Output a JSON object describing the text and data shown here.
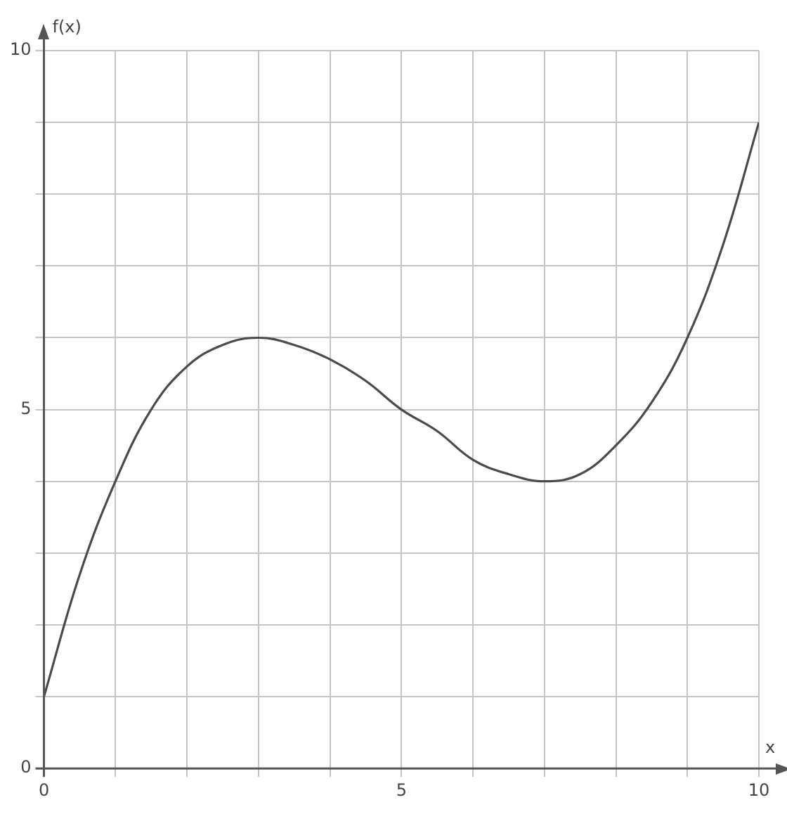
{
  "chart_data": {
    "type": "line",
    "xlabel": "x",
    "ylabel": "f(x)",
    "x": [
      0,
      0.5,
      1,
      1.5,
      2,
      2.5,
      3,
      3.5,
      4,
      4.5,
      5,
      5.5,
      6,
      6.5,
      7,
      7.5,
      8,
      8.5,
      9,
      9.5,
      10
    ],
    "series": [
      {
        "color": "#4a4a4a",
        "values": [
          1,
          2.7,
          4,
          5,
          5.6,
          5.9,
          6,
          5.9,
          5.7,
          5.4,
          5,
          4.7,
          4.3,
          4.1,
          4,
          4.1,
          4.5,
          5.1,
          6,
          7.3,
          9
        ]
      }
    ],
    "xlim": [
      0,
      10
    ],
    "ylim": [
      0,
      10
    ],
    "xticks": [
      0,
      {
        "value": 1,
        "label": null
      },
      {
        "value": 2,
        "label": null
      },
      {
        "value": 3,
        "label": null
      },
      {
        "value": 4,
        "label": null
      },
      5,
      {
        "value": 6,
        "label": null
      },
      {
        "value": 7,
        "label": null
      },
      {
        "value": 8,
        "label": null
      },
      {
        "value": 9,
        "label": null
      },
      10
    ],
    "yticks": [
      0,
      {
        "value": 1,
        "label": null
      },
      {
        "value": 2,
        "label": null
      },
      {
        "value": 3,
        "label": null
      },
      {
        "value": 4,
        "label": null
      },
      5,
      {
        "value": 6,
        "label": null
      },
      {
        "value": 7,
        "label": null
      },
      {
        "value": 8,
        "label": null
      },
      {
        "value": 9,
        "label": null
      },
      10
    ],
    "grid": true,
    "legend": false,
    "marker": "none",
    "line_style": "solid"
  }
}
